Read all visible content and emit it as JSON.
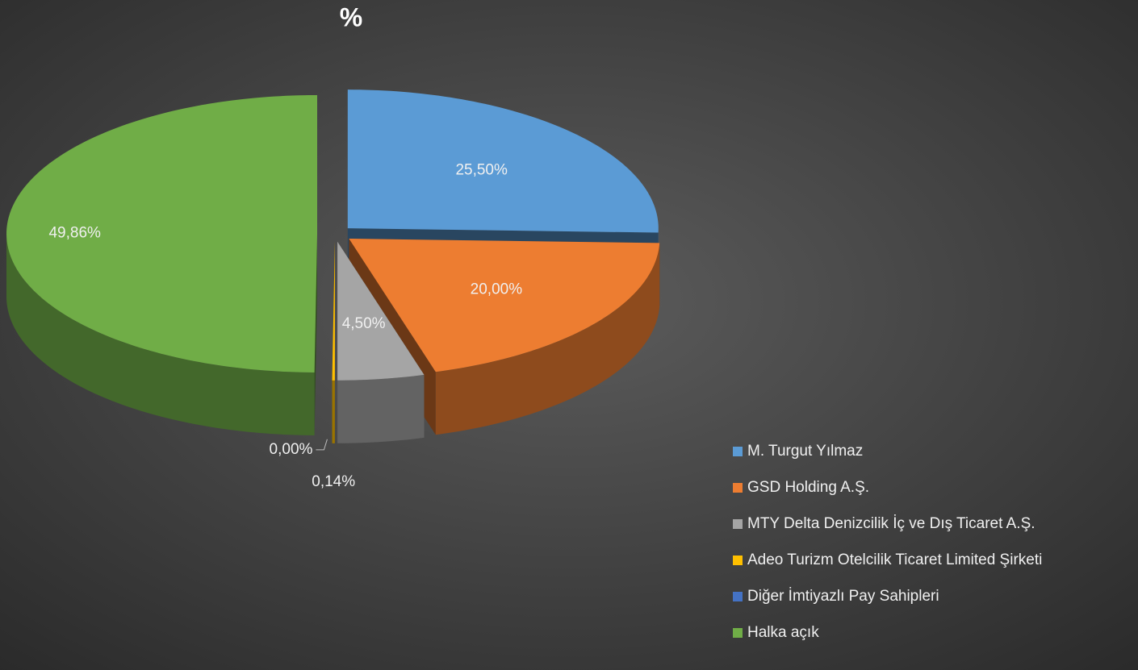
{
  "chart_data": {
    "type": "pie",
    "title": "%",
    "categories": [
      "M. Turgut Yılmaz",
      "GSD Holding A.Ş.",
      "MTY Delta Denizcilik İç ve Dış Ticaret A.Ş.",
      "Adeo Turizm Otelcilik Ticaret Limited Şirketi",
      "Diğer İmtiyazlı Pay Sahipleri",
      "Halka açık"
    ],
    "values": [
      25.5,
      20,
      4.5,
      0.14,
      0,
      49.86
    ],
    "value_labels": [
      "25,50%",
      "20,00%",
      "4,50%",
      "0,14%",
      "0,00%",
      "49,86%"
    ],
    "colors": [
      "#5b9bd5",
      "#ed7d31",
      "#a5a5a5",
      "#ffc000",
      "#4472c4",
      "#70ad47"
    ],
    "legend": "bottom-right"
  }
}
